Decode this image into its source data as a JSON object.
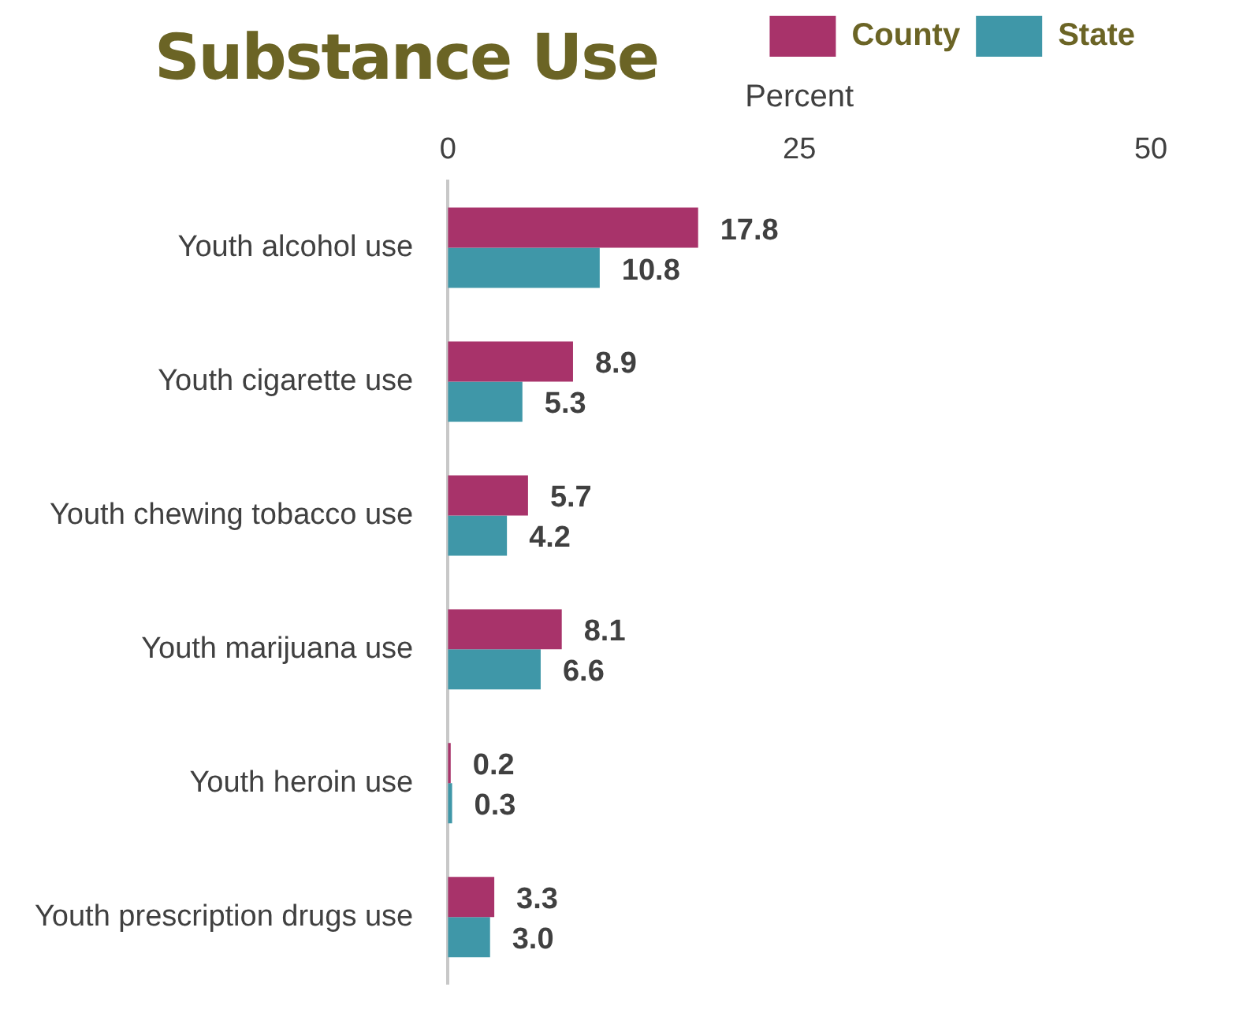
{
  "chart_data": {
    "type": "bar",
    "orientation": "horizontal",
    "title": "Substance Use",
    "xlabel": "Percent",
    "categories": [
      "Youth alcohol use",
      "Youth cigarette use",
      "Youth chewing tobacco use",
      "Youth marijuana use",
      "Youth heroin use",
      "Youth prescription drugs use"
    ],
    "series": [
      {
        "name": "County",
        "color": "#a8336a",
        "values": [
          17.8,
          8.9,
          5.7,
          8.1,
          0.2,
          3.3
        ],
        "value_labels": [
          "17.8",
          "8.9",
          "5.7",
          "8.1",
          "0.2",
          "3.3"
        ]
      },
      {
        "name": "State",
        "color": "#3f97a8",
        "values": [
          10.8,
          5.3,
          4.2,
          6.6,
          0.3,
          3.0
        ],
        "value_labels": [
          "10.8",
          "5.3",
          "4.2",
          "6.6",
          "0.3",
          "3.0"
        ]
      }
    ],
    "xlim": [
      0,
      50
    ],
    "xticks": [
      0,
      25,
      50
    ],
    "grid": false,
    "legend": "top right"
  }
}
